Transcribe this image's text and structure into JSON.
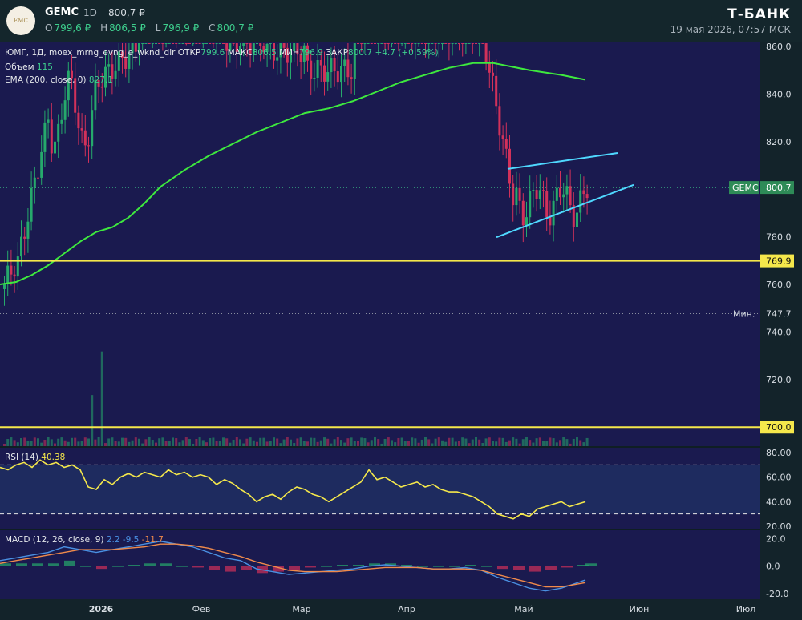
{
  "header": {
    "logo_text": "EMC",
    "ticker": "GEMC",
    "timeframe": "1D",
    "last_price": "800,7 ₽",
    "ohlc": [
      {
        "key": "O",
        "value": "799,6 ₽"
      },
      {
        "key": "H",
        "value": "806,5 ₽"
      },
      {
        "key": "L",
        "value": "796,9 ₽"
      },
      {
        "key": "C",
        "value": "800,7 ₽"
      }
    ],
    "brand": "Т-БАНК",
    "timestamp": "19 мая 2026, 07:57 МСК"
  },
  "legend": {
    "main_line": "ЮМГ, 1Д, moex_mrng_evng_e_wknd_dlr",
    "open_k": "ОТКР",
    "open_v": "799.6",
    "high_k": "МАКС",
    "high_v": "806.5",
    "low_k": "МИН",
    "low_v": "796.9",
    "close_k": "ЗАКР",
    "close_v": "800.7",
    "change": "+4.7 (+0.59%)",
    "volume_k": "Объем",
    "volume_v": "115",
    "ema_k": "EMA (200, close, 0)",
    "ema_v": "827.1",
    "rsi_k": "RSI (14)",
    "rsi_v": "40.38",
    "macd_k": "MACD (12, 26, close, 9)",
    "macd_v1": "2.2",
    "macd_v2": "-9.5",
    "macd_v3": "-11.7"
  },
  "chart_data": {
    "type": "candlestick",
    "x_ticks": [
      "2026",
      "Фев",
      "Мар",
      "Апр",
      "Май",
      "Июн",
      "Июл"
    ],
    "price_ticks": [
      860.0,
      840.0,
      820.0,
      780.0,
      760.0,
      740.0,
      720.0,
      700.0
    ],
    "price_range": [
      692,
      862
    ],
    "last_price_label": {
      "text": "GEMC",
      "value": 800.7
    },
    "min_label": {
      "text": "Мин.",
      "value": 747.7
    },
    "levels": [
      769.9,
      700.0
    ],
    "ema200": [
      [
        0,
        760
      ],
      [
        20,
        761
      ],
      [
        40,
        764
      ],
      [
        60,
        768
      ],
      [
        80,
        773
      ],
      [
        100,
        778
      ],
      [
        120,
        782
      ],
      [
        140,
        784
      ],
      [
        160,
        788
      ],
      [
        180,
        794
      ],
      [
        200,
        801
      ],
      [
        230,
        808
      ],
      [
        260,
        814
      ],
      [
        290,
        819
      ],
      [
        320,
        824
      ],
      [
        350,
        828
      ],
      [
        380,
        832
      ],
      [
        410,
        834
      ],
      [
        440,
        837
      ],
      [
        470,
        841
      ],
      [
        500,
        845
      ],
      [
        530,
        848
      ],
      [
        560,
        851
      ],
      [
        590,
        853
      ],
      [
        605,
        853
      ],
      [
        615,
        853
      ],
      [
        630,
        852
      ],
      [
        660,
        850
      ],
      [
        700,
        848
      ],
      [
        730,
        846
      ]
    ],
    "wedge_upper": [
      [
        633,
        808.5
      ],
      [
        770,
        815.2
      ]
    ],
    "wedge_lower": [
      [
        619,
        779.8
      ],
      [
        790,
        801.8
      ]
    ],
    "rsi_ticks": [
      80.0,
      60.0,
      40.0,
      20.0
    ],
    "rsi_bands": [
      70,
      30
    ],
    "rsi": [
      [
        0,
        68
      ],
      [
        10,
        66
      ],
      [
        20,
        70
      ],
      [
        30,
        72
      ],
      [
        40,
        68
      ],
      [
        50,
        74
      ],
      [
        60,
        70
      ],
      [
        70,
        72
      ],
      [
        80,
        68
      ],
      [
        90,
        70
      ],
      [
        100,
        66
      ],
      [
        110,
        52
      ],
      [
        120,
        50
      ],
      [
        130,
        58
      ],
      [
        140,
        54
      ],
      [
        150,
        60
      ],
      [
        160,
        63
      ],
      [
        170,
        60
      ],
      [
        180,
        64
      ],
      [
        190,
        62
      ],
      [
        200,
        60
      ],
      [
        210,
        66
      ],
      [
        220,
        62
      ],
      [
        230,
        64
      ],
      [
        240,
        60
      ],
      [
        250,
        62
      ],
      [
        260,
        60
      ],
      [
        270,
        54
      ],
      [
        280,
        58
      ],
      [
        290,
        55
      ],
      [
        300,
        50
      ],
      [
        310,
        46
      ],
      [
        320,
        40
      ],
      [
        330,
        44
      ],
      [
        340,
        46
      ],
      [
        350,
        42
      ],
      [
        360,
        48
      ],
      [
        370,
        52
      ],
      [
        380,
        50
      ],
      [
        390,
        46
      ],
      [
        400,
        44
      ],
      [
        410,
        40
      ],
      [
        420,
        44
      ],
      [
        430,
        48
      ],
      [
        440,
        52
      ],
      [
        450,
        56
      ],
      [
        460,
        66
      ],
      [
        470,
        58
      ],
      [
        480,
        60
      ],
      [
        490,
        56
      ],
      [
        500,
        52
      ],
      [
        510,
        54
      ],
      [
        520,
        56
      ],
      [
        530,
        52
      ],
      [
        540,
        54
      ],
      [
        550,
        50
      ],
      [
        560,
        48
      ],
      [
        570,
        48
      ],
      [
        580,
        46
      ],
      [
        590,
        44
      ],
      [
        600,
        40
      ],
      [
        610,
        36
      ],
      [
        620,
        30
      ],
      [
        630,
        28
      ],
      [
        640,
        26
      ],
      [
        650,
        30
      ],
      [
        660,
        28
      ],
      [
        670,
        34
      ],
      [
        680,
        36
      ],
      [
        690,
        38
      ],
      [
        700,
        40
      ],
      [
        710,
        36
      ],
      [
        720,
        38
      ],
      [
        730,
        40
      ]
    ],
    "macd_ticks": [
      20.0,
      0.0,
      -20.0
    ],
    "macd": [
      [
        0,
        4
      ],
      [
        20,
        6
      ],
      [
        40,
        8
      ],
      [
        60,
        10
      ],
      [
        80,
        14
      ],
      [
        100,
        12
      ],
      [
        120,
        10
      ],
      [
        140,
        12
      ],
      [
        160,
        14
      ],
      [
        180,
        16
      ],
      [
        200,
        18
      ],
      [
        220,
        16
      ],
      [
        240,
        14
      ],
      [
        260,
        10
      ],
      [
        280,
        6
      ],
      [
        300,
        4
      ],
      [
        320,
        -2
      ],
      [
        340,
        -4
      ],
      [
        360,
        -6
      ],
      [
        380,
        -5
      ],
      [
        400,
        -4
      ],
      [
        420,
        -3
      ],
      [
        440,
        -2
      ],
      [
        460,
        0
      ],
      [
        480,
        1
      ],
      [
        500,
        0
      ],
      [
        520,
        -1
      ],
      [
        540,
        -2
      ],
      [
        560,
        -2
      ],
      [
        580,
        -1
      ],
      [
        600,
        -3
      ],
      [
        620,
        -8
      ],
      [
        640,
        -12
      ],
      [
        660,
        -16
      ],
      [
        680,
        -18
      ],
      [
        700,
        -16
      ],
      [
        720,
        -12
      ],
      [
        730,
        -10
      ]
    ],
    "signal": [
      [
        0,
        2
      ],
      [
        20,
        4
      ],
      [
        40,
        6
      ],
      [
        60,
        8
      ],
      [
        80,
        10
      ],
      [
        100,
        12
      ],
      [
        120,
        12
      ],
      [
        140,
        12
      ],
      [
        160,
        13
      ],
      [
        180,
        14
      ],
      [
        200,
        16
      ],
      [
        220,
        16
      ],
      [
        240,
        15
      ],
      [
        260,
        13
      ],
      [
        280,
        10
      ],
      [
        300,
        7
      ],
      [
        320,
        3
      ],
      [
        340,
        0
      ],
      [
        360,
        -3
      ],
      [
        380,
        -4
      ],
      [
        400,
        -4
      ],
      [
        420,
        -4
      ],
      [
        440,
        -3
      ],
      [
        460,
        -2
      ],
      [
        480,
        -1
      ],
      [
        500,
        -1
      ],
      [
        520,
        -1
      ],
      [
        540,
        -2
      ],
      [
        560,
        -2
      ],
      [
        580,
        -2
      ],
      [
        600,
        -3
      ],
      [
        620,
        -6
      ],
      [
        640,
        -9
      ],
      [
        660,
        -12
      ],
      [
        680,
        -15
      ],
      [
        700,
        -15
      ],
      [
        720,
        -13
      ],
      [
        730,
        -12
      ]
    ]
  },
  "colors": {
    "bg": "#1a1a4f",
    "up": "#26a96c",
    "down": "#d2315a",
    "ema": "#3ee93e",
    "wedge": "#4fd8ff",
    "level": "#f5e84b",
    "rsi": "#f5e84b",
    "macd": "#4a90e2",
    "signal": "#f08a4b",
    "axis_text": "#d8dee4",
    "badge_green": "#2e8b57"
  }
}
